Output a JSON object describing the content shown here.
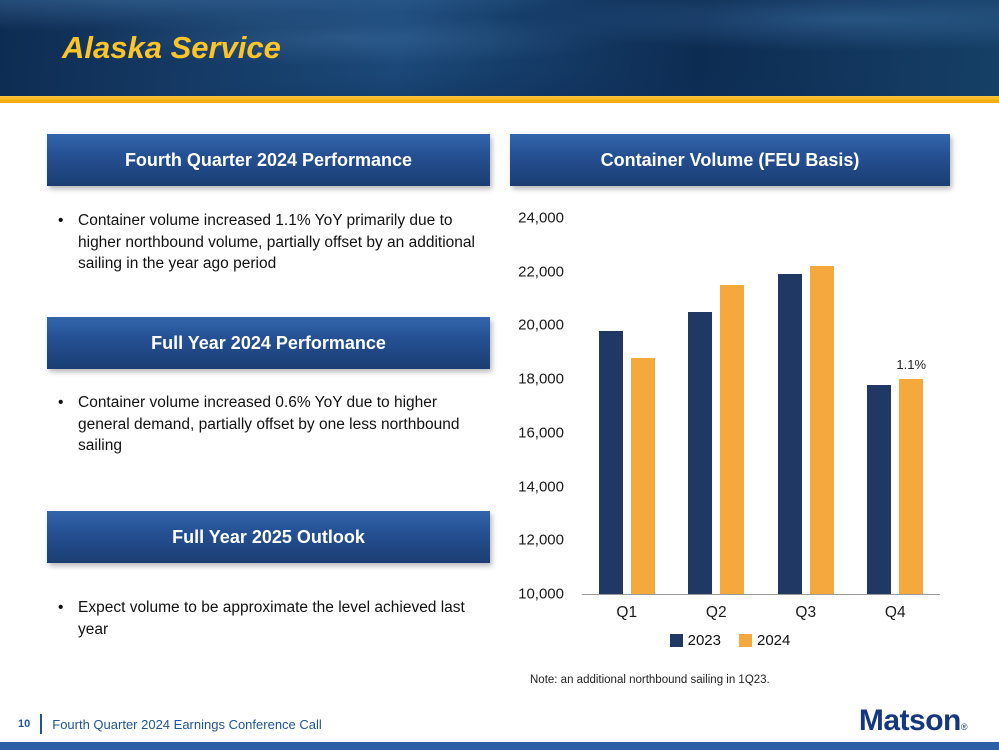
{
  "slide": {
    "title": "Alaska Service",
    "page_number": "10",
    "footer_text": "Fourth Quarter 2024 Earnings Conference Call",
    "logo": "Matson",
    "logo_mark": "®"
  },
  "sections": [
    {
      "heading": "Fourth Quarter 2024 Performance",
      "bullets": [
        "Container volume increased 1.1% YoY primarily due to higher northbound volume, partially offset by an additional sailing in the year ago period"
      ]
    },
    {
      "heading": "Full Year 2024 Performance",
      "bullets": [
        "Container volume increased 0.6% YoY due to higher general demand, partially offset by one less northbound sailing"
      ]
    },
    {
      "heading": "Full Year 2025 Outlook",
      "bullets": [
        "Expect volume to be approximate the level achieved last year"
      ]
    }
  ],
  "chart": {
    "heading": "Container Volume (FEU Basis)",
    "note": "Note: an additional northbound sailing in 1Q23."
  },
  "chart_data": {
    "type": "bar",
    "title": "Container Volume (FEU Basis)",
    "categories": [
      "Q1",
      "Q2",
      "Q3",
      "Q4"
    ],
    "series": [
      {
        "name": "2023",
        "color": "#1F3864",
        "values": [
          19800,
          20500,
          21900,
          17800
        ]
      },
      {
        "name": "2024",
        "color": "#F5A93C",
        "values": [
          18800,
          21500,
          22200,
          18000
        ]
      }
    ],
    "ylim": [
      10000,
      24000
    ],
    "ytick_step": 2000,
    "grid": false,
    "legend_position": "bottom",
    "annotations": [
      {
        "category": "Q4",
        "series": "2024",
        "text": "1.1%"
      }
    ]
  },
  "colors": {
    "accent_gold": "#F2A900",
    "title_gold": "#FFC425",
    "heading_box_blue": "#1F4E79",
    "footer_blue": "#1F5496",
    "logo_navy": "#15377d"
  }
}
